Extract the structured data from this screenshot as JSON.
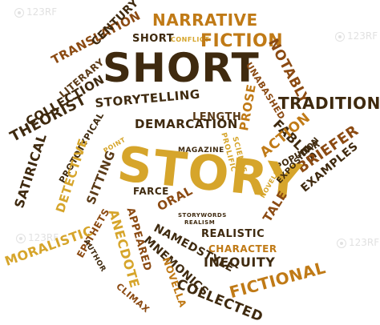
{
  "words": {
    "translation": "TRANSLATION",
    "century": "CENTURY",
    "narrative": "NARRATIVE",
    "short_small": "SHORT",
    "conflict": "CONFLICT",
    "fiction": "FICTION",
    "notably": "NOTABLY",
    "literary": "LITERARY",
    "short_big": "SHORT",
    "unabashed": "UNABASHED",
    "tradition": "TRADITION",
    "collection": "COLLECTION",
    "theorist": "THEORIST",
    "storytelling": "STORYTELLING",
    "length": "LENGTH",
    "demarcation": "DEMARCATION",
    "prose": "PROSE",
    "fables": "FABLES",
    "action": "ACTION",
    "satirical": "SATIRICAL",
    "prototypical": "PROTOTYPICAL",
    "point": "POINT",
    "magazine": "MAGAZINE",
    "prolific": "PROLIFIC",
    "science": "SCIENCE",
    "popular": "POPULAR",
    "briefer": "BRIEFER",
    "detective": "DETECTIVE",
    "sitting": "SITTING",
    "story_big": "STORY",
    "epithets": "EPITHETS",
    "exposition": "EXPOSITION",
    "examples": "EXAMPLES",
    "farce": "FARCE",
    "oral": "ORAL",
    "storywords": "STORYWORDS",
    "novels": "NOVELS",
    "tale": "TALE",
    "moralistic": "MORALISTIC",
    "anecdote": "ANECDOTE",
    "appeared": "APPEARED",
    "namedstyle": "NAMEDSTYLE",
    "realism": "REALISM",
    "realistic": "REALISTIC",
    "author": "AUTHOR",
    "mnemonics": "MNEMONICS",
    "character": "CHARACTER",
    "inequity": "INEQUITY",
    "novella": "NOVELLA",
    "climax": "CLIMAX",
    "collected": "COLLECTED",
    "fictional": "FICTIONAL"
  },
  "watermarks": [
    "123RF",
    "123RF",
    "123RF",
    "123RF"
  ],
  "colors": {
    "dark": "#3f2a0f",
    "rust": "#8b4a12",
    "orange": "#c07a16",
    "gold": "#d6a52b",
    "brown": "#5a3a17"
  }
}
